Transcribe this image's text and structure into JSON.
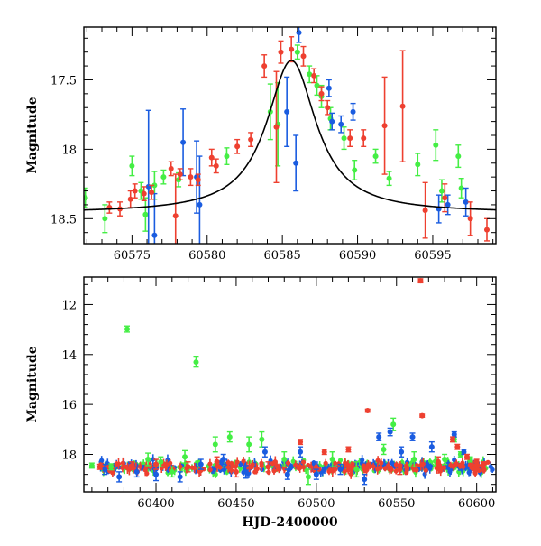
{
  "colors": {
    "green": "#44ee44",
    "blue": "#1a5ce0",
    "red": "#ee4030",
    "axis": "#000000",
    "curve": "#000000"
  },
  "chart_data": [
    {
      "type": "scatter",
      "panel": "top",
      "xlabel": "",
      "ylabel": "Magnitude",
      "xlim": [
        60571.8,
        60599.2
      ],
      "ylim": [
        18.68,
        17.12
      ],
      "y_inverted": true,
      "x_ticks": [
        60575,
        60580,
        60585,
        60590,
        60595
      ],
      "y_ticks": [
        17.5,
        18,
        18.5
      ],
      "model_curve": {
        "type": "lorentzian",
        "t0": 60585.6,
        "baseline": 18.46,
        "peak": 17.36,
        "half_width": 2.0
      },
      "series": [
        {
          "color": "green",
          "points": [
            [
              60571.9,
              18.35,
              0.07
            ],
            [
              60573.2,
              18.5,
              0.1
            ],
            [
              60575.0,
              18.12,
              0.07
            ],
            [
              60575.6,
              18.3,
              0.06
            ],
            [
              60575.9,
              18.47,
              0.12
            ],
            [
              60576.5,
              18.26,
              0.1
            ],
            [
              60577.1,
              18.2,
              0.05
            ],
            [
              60578.1,
              18.22,
              0.05
            ],
            [
              60581.3,
              18.05,
              0.06
            ],
            [
              60584.2,
              17.73,
              0.2
            ],
            [
              60584.7,
              17.82,
              0.3
            ],
            [
              60586.0,
              17.3,
              0.05
            ],
            [
              60586.8,
              17.46,
              0.06
            ],
            [
              60587.3,
              17.54,
              0.07
            ],
            [
              60587.6,
              17.62,
              0.08
            ],
            [
              60588.2,
              17.78,
              0.08
            ],
            [
              60589.1,
              17.92,
              0.08
            ],
            [
              60589.8,
              18.15,
              0.07
            ],
            [
              60591.2,
              18.05,
              0.05
            ],
            [
              60592.1,
              18.21,
              0.05
            ],
            [
              60594.0,
              18.11,
              0.08
            ],
            [
              60595.2,
              17.97,
              0.11
            ],
            [
              60595.6,
              18.3,
              0.08
            ],
            [
              60596.7,
              18.05,
              0.08
            ],
            [
              60596.9,
              18.28,
              0.07
            ]
          ]
        },
        {
          "color": "blue",
          "points": [
            [
              60576.1,
              18.27,
              0.55
            ],
            [
              60576.5,
              18.62,
              0.3
            ],
            [
              60578.4,
              17.95,
              0.24
            ],
            [
              60579.3,
              18.2,
              0.26
            ],
            [
              60579.5,
              18.4,
              0.35
            ],
            [
              60585.3,
              17.73,
              0.25
            ],
            [
              60585.9,
              18.1,
              0.2
            ],
            [
              60586.1,
              17.16,
              0.07
            ],
            [
              60588.1,
              17.56,
              0.06
            ],
            [
              60588.3,
              17.8,
              0.06
            ],
            [
              60588.9,
              17.82,
              0.06
            ],
            [
              60589.7,
              17.73,
              0.06
            ],
            [
              60595.4,
              18.43,
              0.1
            ],
            [
              60596.0,
              18.4,
              0.07
            ],
            [
              60597.2,
              18.38,
              0.1
            ]
          ]
        },
        {
          "color": "red",
          "points": [
            [
              60573.5,
              18.42,
              0.04
            ],
            [
              60574.2,
              18.43,
              0.05
            ],
            [
              60574.9,
              18.36,
              0.06
            ],
            [
              60575.2,
              18.3,
              0.05
            ],
            [
              60575.8,
              18.32,
              0.05
            ],
            [
              60576.3,
              18.31,
              0.05
            ],
            [
              60577.6,
              18.14,
              0.05
            ],
            [
              60577.9,
              18.48,
              0.3
            ],
            [
              60578.2,
              18.18,
              0.04
            ],
            [
              60578.9,
              18.2,
              0.06
            ],
            [
              60579.4,
              18.22,
              0.04
            ],
            [
              60580.3,
              18.06,
              0.06
            ],
            [
              60580.6,
              18.12,
              0.05
            ],
            [
              60582.0,
              17.98,
              0.05
            ],
            [
              60582.9,
              17.93,
              0.05
            ],
            [
              60583.8,
              17.4,
              0.08
            ],
            [
              60584.6,
              17.84,
              0.4
            ],
            [
              60584.9,
              17.3,
              0.08
            ],
            [
              60585.6,
              17.28,
              0.09
            ],
            [
              60586.4,
              17.33,
              0.07
            ],
            [
              60587.1,
              17.47,
              0.05
            ],
            [
              60587.6,
              17.6,
              0.05
            ],
            [
              60588.0,
              17.7,
              0.05
            ],
            [
              60589.5,
              17.92,
              0.06
            ],
            [
              60590.4,
              17.92,
              0.06
            ],
            [
              60591.8,
              17.83,
              0.35
            ],
            [
              60593.0,
              17.69,
              0.4
            ],
            [
              60594.5,
              18.44,
              0.2
            ],
            [
              60595.8,
              18.35,
              0.1
            ],
            [
              60597.5,
              18.5,
              0.12
            ],
            [
              60598.6,
              18.58,
              0.08
            ]
          ]
        }
      ]
    },
    {
      "type": "scatter",
      "panel": "bottom",
      "xlabel": "HJD-2400000",
      "ylabel": "Magnitude",
      "xlim": [
        60355,
        60612
      ],
      "ylim": [
        19.5,
        10.9
      ],
      "y_inverted": true,
      "x_ticks": [
        60400,
        60450,
        60500,
        60550,
        60600
      ],
      "y_ticks": [
        12,
        14,
        16,
        18
      ],
      "baseline_band": {
        "center": 18.5,
        "scatter": 0.12
      },
      "series": [
        {
          "color": "green",
          "points": [
            [
              60360,
              18.45,
              0.1
            ],
            [
              60372,
              18.5,
              0.12
            ],
            [
              60382,
              12.98,
              0.12
            ],
            [
              60395,
              18.2,
              0.25
            ],
            [
              60403,
              18.3,
              0.2
            ],
            [
              60410,
              18.7,
              0.2
            ],
            [
              60418,
              18.1,
              0.25
            ],
            [
              60425,
              14.3,
              0.2
            ],
            [
              60437,
              17.6,
              0.3
            ],
            [
              60446,
              17.3,
              0.2
            ],
            [
              60458,
              17.6,
              0.3
            ],
            [
              60466,
              17.4,
              0.3
            ],
            [
              60480,
              18.2,
              0.3
            ],
            [
              60495,
              18.9,
              0.3
            ],
            [
              60510,
              18.2,
              0.3
            ],
            [
              60525,
              18.6,
              0.3
            ],
            [
              60542,
              17.8,
              0.2
            ],
            [
              60548,
              16.8,
              0.25
            ],
            [
              60561,
              18.2,
              0.3
            ],
            [
              60580,
              18.2,
              0.2
            ],
            [
              60586,
              17.4,
              0.1
            ],
            [
              60590,
              18.0,
              0.1
            ],
            [
              60596,
              18.2,
              0.1
            ]
          ]
        },
        {
          "color": "blue",
          "points": [
            [
              60368,
              18.6,
              0.2
            ],
            [
              60377,
              18.9,
              0.2
            ],
            [
              60388,
              18.7,
              0.2
            ],
            [
              60400,
              18.8,
              0.25
            ],
            [
              60415,
              18.9,
              0.2
            ],
            [
              60428,
              18.4,
              0.2
            ],
            [
              60442,
              18.2,
              0.2
            ],
            [
              60456,
              18.7,
              0.25
            ],
            [
              60468,
              17.9,
              0.2
            ],
            [
              60482,
              18.8,
              0.2
            ],
            [
              60490,
              17.9,
              0.2
            ],
            [
              60500,
              18.8,
              0.2
            ],
            [
              60515,
              18.6,
              0.2
            ],
            [
              60530,
              19.0,
              0.2
            ],
            [
              60539,
              17.3,
              0.15
            ],
            [
              60546,
              17.1,
              0.15
            ],
            [
              60553,
              17.9,
              0.2
            ],
            [
              60560,
              17.3,
              0.15
            ],
            [
              60572,
              17.7,
              0.2
            ],
            [
              60586,
              17.2,
              0.1
            ],
            [
              60592,
              17.9,
              0.1
            ]
          ]
        },
        {
          "color": "red",
          "points": [
            [
              60365,
              18.5,
              0.1
            ],
            [
              60385,
              18.45,
              0.15
            ],
            [
              60400,
              18.4,
              0.2
            ],
            [
              60420,
              18.5,
              0.2
            ],
            [
              60438,
              18.3,
              0.2
            ],
            [
              60450,
              18.7,
              0.2
            ],
            [
              60470,
              18.5,
              0.2
            ],
            [
              60490,
              17.5,
              0.1
            ],
            [
              60505,
              17.9,
              0.1
            ],
            [
              60520,
              17.8,
              0.1
            ],
            [
              60532,
              16.25,
              0.06
            ],
            [
              60552,
              18.6,
              0.2
            ],
            [
              60565,
              11.05,
              0.08
            ],
            [
              60566,
              16.45,
              0.06
            ],
            [
              60576,
              18.3,
              0.2
            ],
            [
              60585,
              17.4,
              0.1
            ],
            [
              60588,
              17.7,
              0.1
            ],
            [
              60594,
              18.1,
              0.1
            ],
            [
              60600,
              18.3,
              0.1
            ],
            [
              60604,
              18.4,
              0.1
            ]
          ]
        }
      ]
    }
  ]
}
